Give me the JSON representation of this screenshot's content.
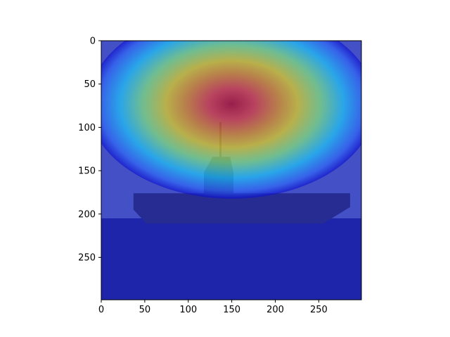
{
  "chart_data": {
    "type": "heatmap",
    "title": "",
    "xlabel": "",
    "ylabel": "",
    "xlim": [
      0,
      299
    ],
    "ylim": [
      299,
      0
    ],
    "xticks": [
      0,
      50,
      100,
      150,
      200,
      250
    ],
    "yticks": [
      0,
      50,
      100,
      150,
      200,
      250
    ],
    "colormap": "jet",
    "overlay_alpha": 0.5,
    "hotspot": {
      "x": 150,
      "y": 73,
      "spread_x": 75,
      "spread_y": 42
    },
    "background": {
      "sky_color": "#6f86b8",
      "sea_color": "#2d3a8a",
      "horizon_y": 205,
      "ship_color": "#3b4660",
      "ship_hull": [
        [
          37,
          176
        ],
        [
          286,
          176
        ],
        [
          286,
          192
        ],
        [
          255,
          211
        ],
        [
          52,
          211
        ],
        [
          37,
          195
        ]
      ],
      "ship_island": [
        [
          118,
          152
        ],
        [
          128,
          134
        ],
        [
          148,
          134
        ],
        [
          152,
          152
        ],
        [
          152,
          176
        ],
        [
          118,
          176
        ]
      ],
      "mast_x": 137,
      "mast_top_y": 94,
      "mast_base_y": 134
    }
  }
}
